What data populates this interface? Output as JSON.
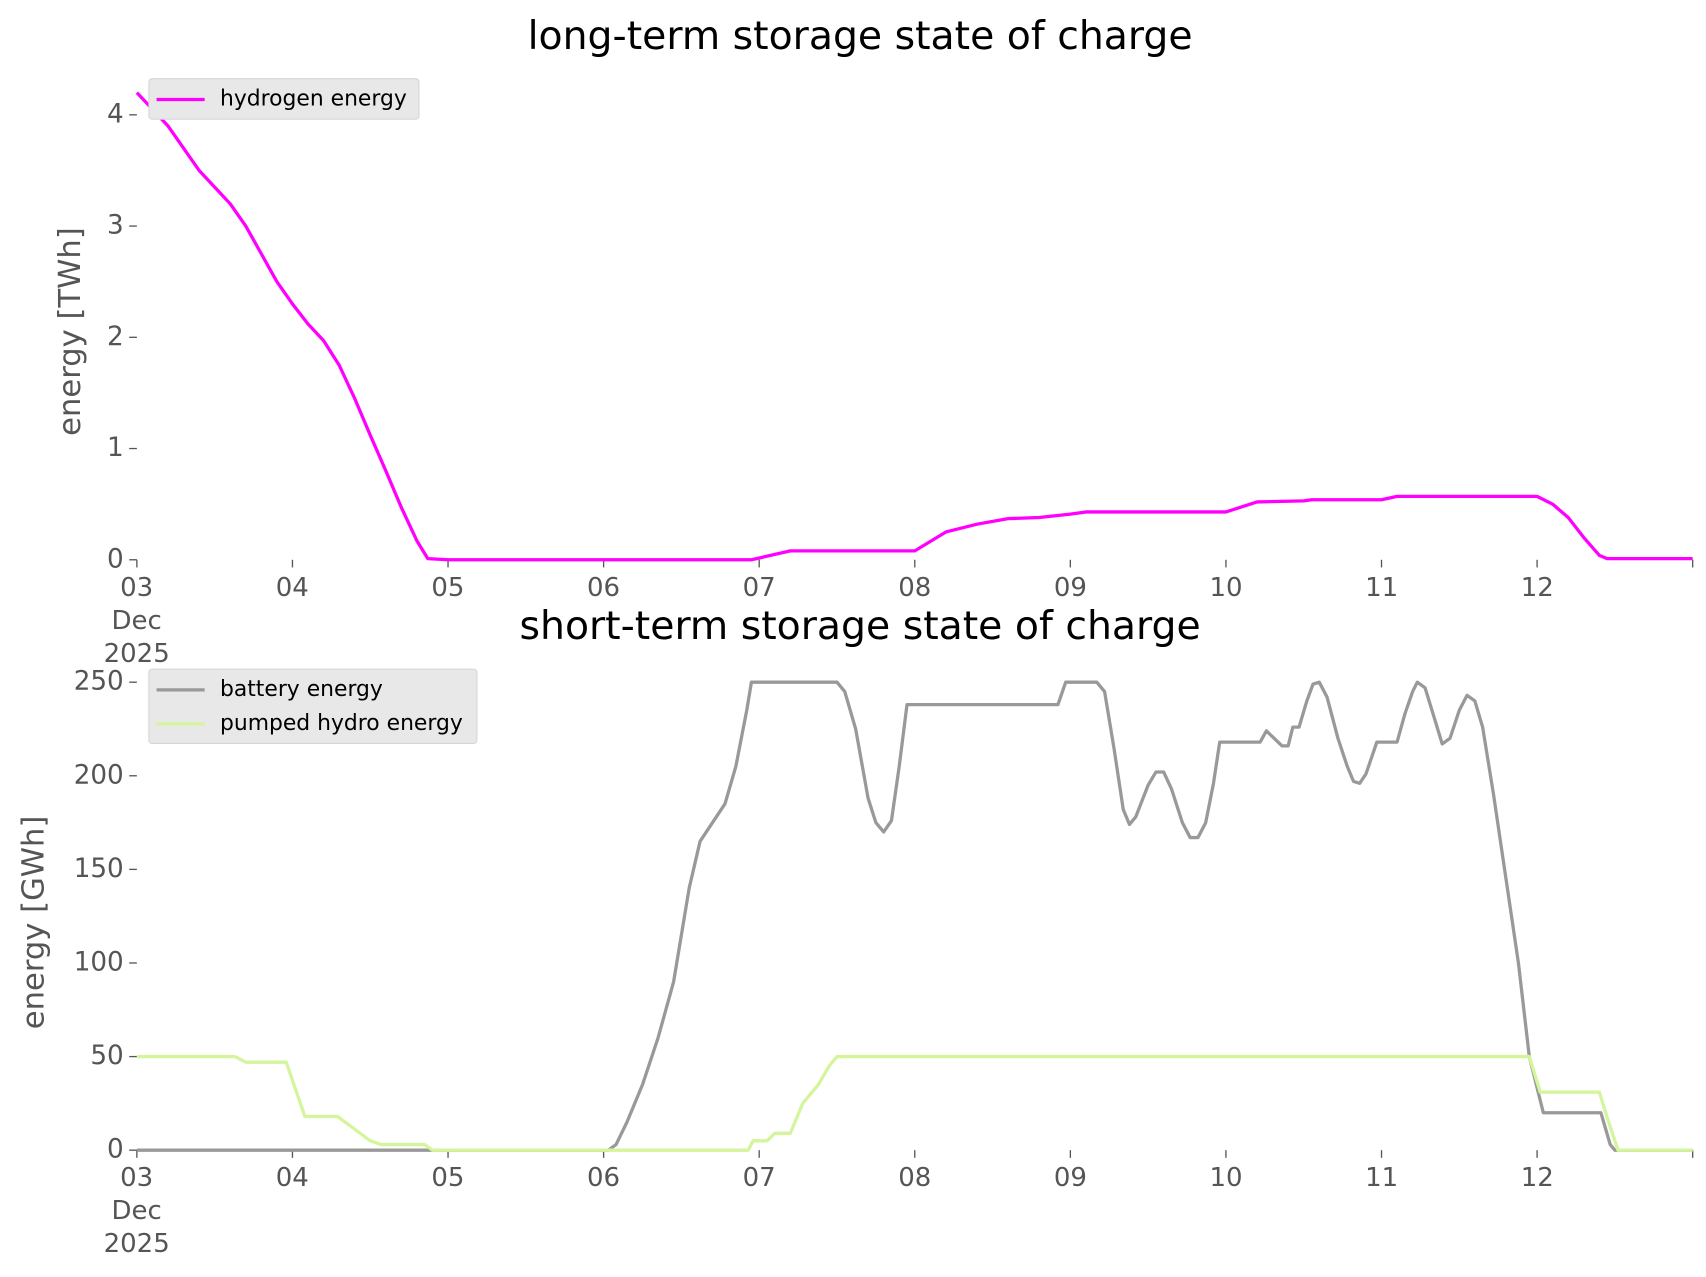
{
  "chart_data": [
    {
      "type": "line",
      "title": "long-term storage state of charge",
      "ylabel": "energy [TWh]",
      "legend": "upper left",
      "grid": false,
      "xlim": [
        3,
        13
      ],
      "xticks": [
        {
          "value": 3,
          "label": "03\nDec\n2025"
        },
        {
          "value": 4,
          "label": "04"
        },
        {
          "value": 5,
          "label": "05"
        },
        {
          "value": 6,
          "label": "06"
        },
        {
          "value": 7,
          "label": "07"
        },
        {
          "value": 8,
          "label": "08"
        },
        {
          "value": 9,
          "label": "09"
        },
        {
          "value": 10,
          "label": "10"
        },
        {
          "value": 11,
          "label": "11"
        },
        {
          "value": 12,
          "label": "12"
        }
      ],
      "ylim": [
        0,
        4.3
      ],
      "yticks": [
        0,
        1,
        2,
        3,
        4
      ],
      "series": [
        {
          "name": "hydrogen energy",
          "color": "#ff00ff",
          "x": [
            3.0,
            3.1,
            3.2,
            3.3,
            3.4,
            3.5,
            3.6,
            3.7,
            3.8,
            3.9,
            4.0,
            4.1,
            4.2,
            4.3,
            4.4,
            4.5,
            4.6,
            4.7,
            4.8,
            4.87,
            5.0,
            6.0,
            6.95,
            7.2,
            8.0,
            8.2,
            8.4,
            8.6,
            8.8,
            9.0,
            9.1,
            10.0,
            10.2,
            10.5,
            10.55,
            11.0,
            11.1,
            12.0,
            12.1,
            12.2,
            12.3,
            12.4,
            12.45,
            13.0
          ],
          "values": [
            4.2,
            4.05,
            3.9,
            3.7,
            3.5,
            3.35,
            3.2,
            3.0,
            2.75,
            2.5,
            2.3,
            2.12,
            1.97,
            1.75,
            1.45,
            1.12,
            0.8,
            0.47,
            0.17,
            0.01,
            0,
            0,
            0,
            0.08,
            0.08,
            0.25,
            0.32,
            0.37,
            0.38,
            0.41,
            0.43,
            0.43,
            0.52,
            0.53,
            0.54,
            0.54,
            0.57,
            0.57,
            0.5,
            0.38,
            0.2,
            0.04,
            0.01,
            0.01
          ]
        }
      ]
    },
    {
      "type": "line",
      "title": "short-term storage state of charge",
      "ylabel": "energy [GWh]",
      "legend": "upper left",
      "grid": false,
      "xlim": [
        3,
        13
      ],
      "xticks": [
        {
          "value": 3,
          "label": "03\nDec\n2025"
        },
        {
          "value": 4,
          "label": "04"
        },
        {
          "value": 5,
          "label": "05"
        },
        {
          "value": 6,
          "label": "06"
        },
        {
          "value": 7,
          "label": "07"
        },
        {
          "value": 8,
          "label": "08"
        },
        {
          "value": 9,
          "label": "09"
        },
        {
          "value": 10,
          "label": "10"
        },
        {
          "value": 11,
          "label": "11"
        },
        {
          "value": 12,
          "label": "12"
        }
      ],
      "ylim": [
        0,
        255
      ],
      "yticks": [
        0,
        50,
        100,
        150,
        200,
        250
      ],
      "series": [
        {
          "name": "battery energy",
          "color": "#999999",
          "x": [
            3,
            6.03,
            6.08,
            6.15,
            6.25,
            6.35,
            6.45,
            6.55,
            6.62,
            6.7,
            6.78,
            6.85,
            6.92,
            6.95,
            7.5,
            7.55,
            7.62,
            7.7,
            7.75,
            7.8,
            7.85,
            7.9,
            7.95,
            8.92,
            8.97,
            9.17,
            9.22,
            9.28,
            9.34,
            9.38,
            9.42,
            9.5,
            9.55,
            9.6,
            9.65,
            9.72,
            9.77,
            9.82,
            9.87,
            9.92,
            9.96,
            10.22,
            10.26,
            10.31,
            10.36,
            10.4,
            10.43,
            10.47,
            10.52,
            10.56,
            10.6,
            10.65,
            10.72,
            10.78,
            10.82,
            10.86,
            10.9,
            10.97,
            11.1,
            11.15,
            11.2,
            11.23,
            11.28,
            11.35,
            11.39,
            11.44,
            11.5,
            11.55,
            11.6,
            11.65,
            11.72,
            11.8,
            11.88,
            11.95,
            12.04,
            12.41,
            12.47,
            12.5,
            13
          ],
          "values": [
            0,
            0,
            3,
            15,
            35,
            60,
            90,
            140,
            165,
            175,
            185,
            205,
            235,
            250,
            250,
            245,
            225,
            188,
            175,
            170,
            176,
            205,
            238,
            238,
            250,
            250,
            245,
            215,
            182,
            174,
            178,
            195,
            202,
            202,
            193,
            175,
            167,
            167,
            175,
            196,
            218,
            218,
            224,
            220,
            216,
            216,
            226,
            226,
            240,
            249,
            250,
            242,
            220,
            205,
            197,
            196,
            201,
            218,
            218,
            233,
            245,
            250,
            247,
            228,
            217,
            220,
            235,
            243,
            240,
            226,
            190,
            145,
            100,
            50,
            20,
            20,
            3,
            0,
            0
          ]
        },
        {
          "name": "pumped hydro energy",
          "color": "#d4f59c",
          "x": [
            3.0,
            3.63,
            3.7,
            3.96,
            4.08,
            4.29,
            4.5,
            4.57,
            4.85,
            4.9,
            6.93,
            6.96,
            7.05,
            7.1,
            7.2,
            7.28,
            7.38,
            7.45,
            7.5,
            11.95,
            12.02,
            12.4,
            12.46,
            12.52,
            13.0
          ],
          "values": [
            50,
            50,
            47,
            47,
            18,
            18,
            5,
            3,
            3,
            0,
            0,
            5,
            5,
            9,
            9,
            25,
            35,
            45,
            50,
            50,
            31,
            31,
            15,
            0,
            0
          ]
        }
      ]
    }
  ]
}
